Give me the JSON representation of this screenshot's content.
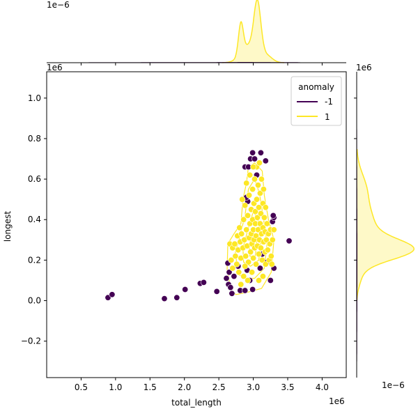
{
  "chart_data": {
    "type": "scatter",
    "title": "",
    "xlabel": "total_length",
    "ylabel": "longest",
    "x_offset_label": "1e6",
    "y_offset_label": "1e6",
    "top_density_offset_label": "1e−6",
    "right_density_offset_label": "1e−6",
    "right_density_top_label": "1e6",
    "xlim": [
      0.0,
      4.35
    ],
    "ylim": [
      -0.38,
      1.13
    ],
    "x_ticks": [
      0.5,
      1.0,
      1.5,
      2.0,
      2.5,
      3.0,
      3.5,
      4.0
    ],
    "x_tick_labels": [
      "0.5",
      "1.0",
      "1.5",
      "2.0",
      "2.5",
      "3.0",
      "3.5",
      "4.0"
    ],
    "y_ticks": [
      -0.2,
      0.0,
      0.2,
      0.4,
      0.6,
      0.8,
      1.0
    ],
    "y_tick_labels": [
      "−0.2",
      "0.0",
      "0.2",
      "0.4",
      "0.6",
      "0.8",
      "1.0"
    ],
    "grid": false,
    "legend": {
      "title": "anomaly",
      "placement": "top-right",
      "entries": [
        {
          "label": "-1",
          "color": "#440154"
        },
        {
          "label": "1",
          "color": "#fde725"
        }
      ]
    },
    "series": [
      {
        "name": "-1",
        "color": "#440154",
        "points": [
          [
            0.89,
            0.015
          ],
          [
            0.95,
            0.03
          ],
          [
            1.71,
            0.01
          ],
          [
            1.89,
            0.015
          ],
          [
            2.01,
            0.055
          ],
          [
            2.23,
            0.085
          ],
          [
            2.28,
            0.09
          ],
          [
            2.47,
            0.045
          ],
          [
            2.61,
            0.11
          ],
          [
            2.64,
            0.08
          ],
          [
            2.67,
            0.065
          ],
          [
            2.69,
            0.035
          ],
          [
            2.72,
            0.12
          ],
          [
            2.65,
            0.14
          ],
          [
            2.63,
            0.185
          ],
          [
            2.81,
            0.05
          ],
          [
            2.88,
            0.05
          ],
          [
            2.95,
            0.1
          ],
          [
            2.99,
            0.055
          ],
          [
            3.25,
            0.1
          ],
          [
            3.3,
            0.16
          ],
          [
            3.2,
            0.19
          ],
          [
            3.13,
            0.23
          ],
          [
            3.52,
            0.295
          ],
          [
            3.28,
            0.39
          ],
          [
            3.3,
            0.41
          ],
          [
            3.29,
            0.42
          ],
          [
            2.92,
            0.49
          ],
          [
            2.9,
            0.51
          ],
          [
            2.88,
            0.66
          ],
          [
            2.93,
            0.66
          ],
          [
            2.96,
            0.7
          ],
          [
            2.99,
            0.73
          ],
          [
            3.02,
            0.7
          ],
          [
            3.05,
            0.62
          ],
          [
            3.11,
            0.73
          ],
          [
            3.18,
            0.69
          ],
          [
            2.78,
            0.17
          ],
          [
            2.91,
            0.15
          ],
          [
            3.1,
            0.16
          ]
        ]
      },
      {
        "name": "1",
        "color": "#fde725",
        "points": [
          [
            2.66,
            0.28
          ],
          [
            2.68,
            0.2
          ],
          [
            2.7,
            0.16
          ],
          [
            2.7,
            0.26
          ],
          [
            2.73,
            0.28
          ],
          [
            2.74,
            0.22
          ],
          [
            2.76,
            0.18
          ],
          [
            2.77,
            0.32
          ],
          [
            2.78,
            0.25
          ],
          [
            2.79,
            0.14
          ],
          [
            2.8,
            0.36
          ],
          [
            2.81,
            0.29
          ],
          [
            2.82,
            0.21
          ],
          [
            2.83,
            0.33
          ],
          [
            2.84,
            0.5
          ],
          [
            2.85,
            0.26
          ],
          [
            2.86,
            0.4
          ],
          [
            2.86,
            0.12
          ],
          [
            2.87,
            0.3
          ],
          [
            2.88,
            0.47
          ],
          [
            2.89,
            0.22
          ],
          [
            2.9,
            0.35
          ],
          [
            2.9,
            0.58
          ],
          [
            2.91,
            0.27
          ],
          [
            2.92,
            0.42
          ],
          [
            2.93,
            0.19
          ],
          [
            2.94,
            0.31
          ],
          [
            2.94,
            0.52
          ],
          [
            2.95,
            0.38
          ],
          [
            2.95,
            0.62
          ],
          [
            2.96,
            0.24
          ],
          [
            2.97,
            0.45
          ],
          [
            2.97,
            0.33
          ],
          [
            2.98,
            0.28
          ],
          [
            2.99,
            0.55
          ],
          [
            2.99,
            0.4
          ],
          [
            3.0,
            0.21
          ],
          [
            3.0,
            0.35
          ],
          [
            3.01,
            0.48
          ],
          [
            3.01,
            0.3
          ],
          [
            3.02,
            0.26
          ],
          [
            3.02,
            0.6
          ],
          [
            3.03,
            0.38
          ],
          [
            3.03,
            0.44
          ],
          [
            3.04,
            0.32
          ],
          [
            3.04,
            0.18
          ],
          [
            3.05,
            0.5
          ],
          [
            3.05,
            0.66
          ],
          [
            3.06,
            0.27
          ],
          [
            3.06,
            0.41
          ],
          [
            3.07,
            0.35
          ],
          [
            3.07,
            0.57
          ],
          [
            3.08,
            0.23
          ],
          [
            3.08,
            0.46
          ],
          [
            3.09,
            0.3
          ],
          [
            3.09,
            0.68
          ],
          [
            3.1,
            0.38
          ],
          [
            3.1,
            0.53
          ],
          [
            3.11,
            0.26
          ],
          [
            3.11,
            0.43
          ],
          [
            3.12,
            0.33
          ],
          [
            3.12,
            0.6
          ],
          [
            3.13,
            0.2
          ],
          [
            3.14,
            0.48
          ],
          [
            3.14,
            0.36
          ],
          [
            3.15,
            0.29
          ],
          [
            3.15,
            0.55
          ],
          [
            3.16,
            0.41
          ],
          [
            3.17,
            0.24
          ],
          [
            3.17,
            0.34
          ],
          [
            3.18,
            0.46
          ],
          [
            3.18,
            0.18
          ],
          [
            3.19,
            0.3
          ],
          [
            3.2,
            0.38
          ],
          [
            3.21,
            0.25
          ],
          [
            3.22,
            0.33
          ],
          [
            3.23,
            0.2
          ],
          [
            3.24,
            0.28
          ],
          [
            3.25,
            0.35
          ],
          [
            3.26,
            0.22
          ],
          [
            3.28,
            0.3
          ],
          [
            3.3,
            0.35
          ],
          [
            3.27,
            0.18
          ],
          [
            2.98,
            0.14
          ],
          [
            2.92,
            0.1
          ],
          [
            3.0,
            0.66
          ],
          [
            3.08,
            0.1
          ],
          [
            2.82,
            0.08
          ],
          [
            3.14,
            0.12
          ],
          [
            2.88,
            0.17
          ]
        ]
      }
    ],
    "top_marginal_peaks_x": [
      2.82,
      3.06
    ],
    "right_marginal_peak_y": 0.25
  }
}
